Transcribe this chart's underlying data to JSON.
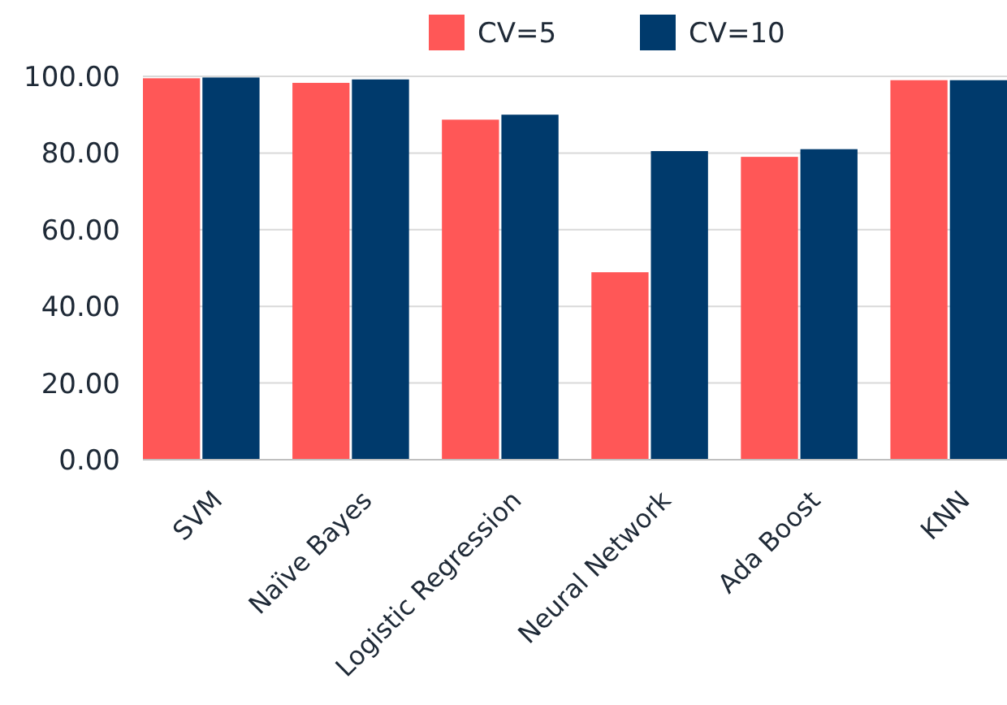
{
  "chart_data": {
    "type": "bar",
    "categories": [
      "SVM",
      "Naïve Bayes",
      "Logistic Regression",
      "Neural Network",
      "Ada Boost",
      "KNN"
    ],
    "series": [
      {
        "name": "CV=5",
        "color": "#ff5757",
        "values": [
          99.5,
          98.3,
          88.7,
          48.9,
          79.0,
          99.0
        ]
      },
      {
        "name": "CV=10",
        "color": "#003a6c",
        "values": [
          99.7,
          99.2,
          90.0,
          80.5,
          81.0,
          99.0
        ]
      }
    ],
    "ylim": [
      0,
      100
    ],
    "yticks": [
      {
        "value": 0,
        "label": "0.00"
      },
      {
        "value": 20,
        "label": "20.00"
      },
      {
        "value": 40,
        "label": "40.00"
      },
      {
        "value": 60,
        "label": "60.00"
      },
      {
        "value": 80,
        "label": "80.00"
      },
      {
        "value": 100,
        "label": "100.00"
      }
    ],
    "grid": "y",
    "legend": "top"
  }
}
